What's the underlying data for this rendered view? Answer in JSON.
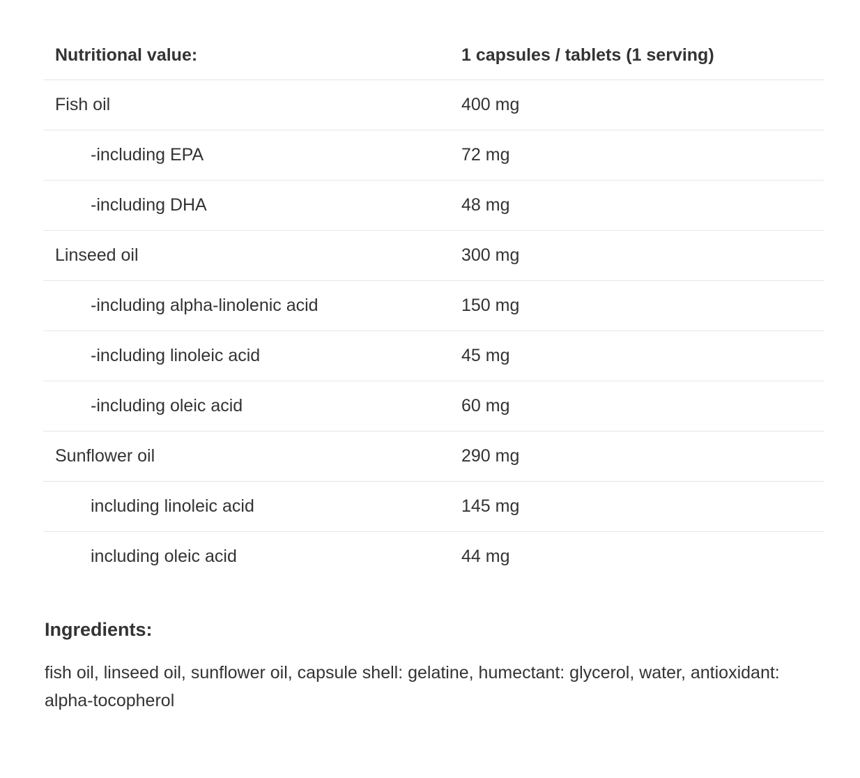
{
  "table": {
    "header": [
      "Nutritional value:",
      "1 capsules / tablets (1 serving)"
    ],
    "rows": [
      {
        "name": "Fish oil",
        "value": "400 mg",
        "sub": false
      },
      {
        "name": "-including EPA",
        "value": "72 mg",
        "sub": true
      },
      {
        "name": "-including DHA",
        "value": "48 mg",
        "sub": true
      },
      {
        "name": "Linseed oil",
        "value": "300 mg",
        "sub": false
      },
      {
        "name": "-including alpha-linolenic acid",
        "value": "150 mg",
        "sub": true
      },
      {
        "name": "-including linoleic acid",
        "value": "45 mg",
        "sub": true
      },
      {
        "name": "-including oleic acid",
        "value": "60 mg",
        "sub": true
      },
      {
        "name": "Sunflower oil",
        "value": "290 mg",
        "sub": false
      },
      {
        "name": "including linoleic acid",
        "value": "145 mg",
        "sub": true
      },
      {
        "name": "including oleic acid",
        "value": "44 mg",
        "sub": true
      }
    ]
  },
  "ingredients": {
    "title": "Ingredients:",
    "text": "fish oil, linseed oil, sunflower oil, capsule shell: gelatine, humectant: glycerol, water, antioxidant: alpha-tocopherol"
  }
}
